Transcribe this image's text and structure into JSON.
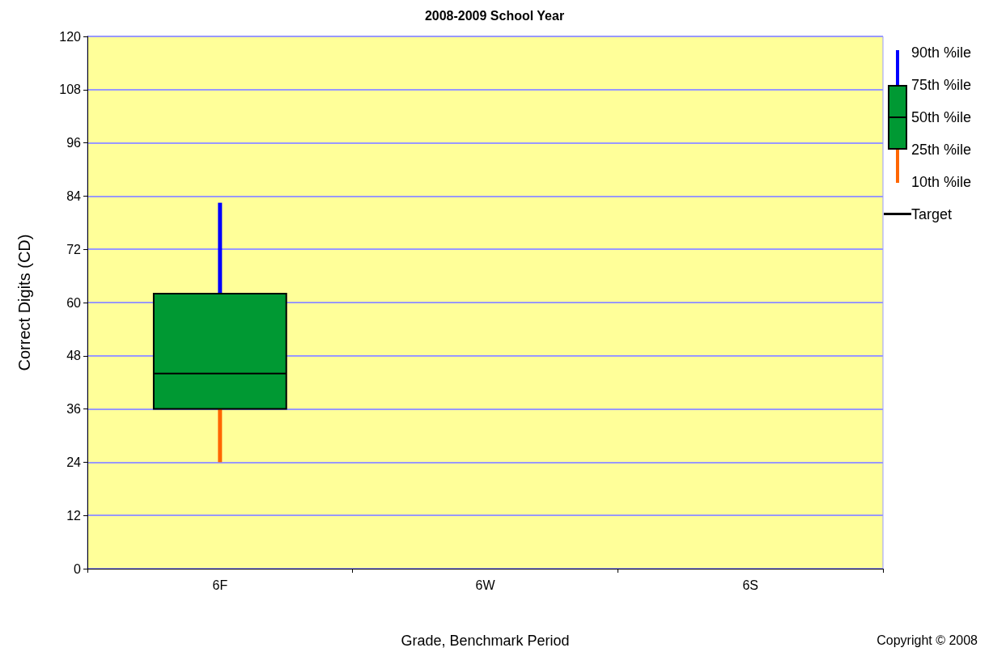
{
  "chart_data": {
    "type": "box",
    "title": "2008-2009 School Year",
    "xlabel": "Grade, Benchmark Period",
    "ylabel": "Correct Digits (CD)",
    "categories": [
      "6F",
      "6W",
      "6S"
    ],
    "boxes": [
      {
        "low": 24,
        "q1": 36,
        "median": 44,
        "q3": 62,
        "high": 82.5
      },
      null,
      null
    ],
    "color": "#009933",
    "ylim": [
      0,
      120
    ],
    "yticks": [
      0,
      12,
      24,
      36,
      48,
      60,
      72,
      84,
      96,
      108,
      120
    ],
    "grid": "y",
    "annotations": [
      "90th %ile",
      "75th %ile",
      "50th %ile",
      "25th %ile",
      "10th %ile",
      "Target",
      "Copyright © 2008"
    ]
  }
}
